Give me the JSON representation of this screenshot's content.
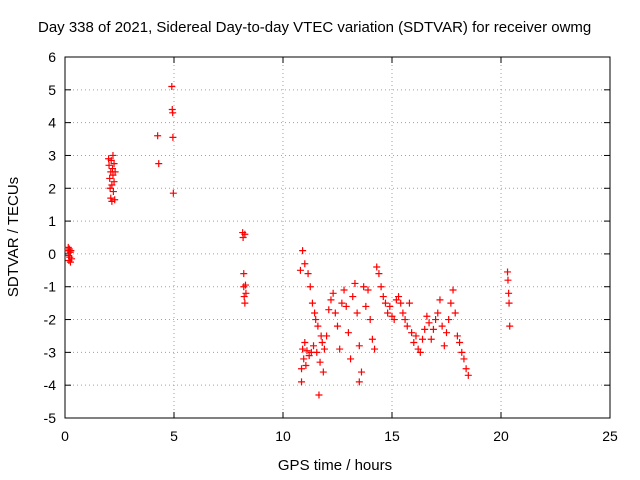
{
  "chart_data": {
    "type": "scatter",
    "title": "Day 338 of 2021, Sidereal Day-to-day VTEC variation (SDTVAR) for receiver owmg",
    "xlabel": "GPS time / hours",
    "ylabel": "SDTVAR / TECUs",
    "xlim": [
      0,
      25
    ],
    "ylim": [
      -5,
      6
    ],
    "xticks": [
      0,
      5,
      10,
      15,
      20,
      25
    ],
    "yticks": [
      -5,
      -4,
      -3,
      -2,
      -1,
      0,
      1,
      2,
      3,
      4,
      5,
      6
    ],
    "xtick_labels": [
      "0",
      "5",
      "10",
      "15",
      "20",
      "25"
    ],
    "ytick_labels": [
      "-5",
      "-4",
      "-3",
      "-2",
      "-1",
      "0",
      "1",
      "2",
      "3",
      "4",
      "5",
      "6"
    ],
    "grid": true,
    "marker": "+",
    "color": "#ff0000",
    "series": [
      {
        "name": "SDTVAR",
        "points": [
          [
            0.15,
            0.2
          ],
          [
            0.15,
            0.1
          ],
          [
            0.17,
            -0.05
          ],
          [
            0.18,
            -0.2
          ],
          [
            0.2,
            0.15
          ],
          [
            0.22,
            -0.1
          ],
          [
            0.24,
            0.05
          ],
          [
            0.25,
            -0.25
          ],
          [
            0.27,
            0.1
          ],
          [
            0.3,
            -0.15
          ],
          [
            2.0,
            2.9
          ],
          [
            2.02,
            2.7
          ],
          [
            2.05,
            2.3
          ],
          [
            2.07,
            2.0
          ],
          [
            2.1,
            1.7
          ],
          [
            2.1,
            2.5
          ],
          [
            2.12,
            2.85
          ],
          [
            2.15,
            2.1
          ],
          [
            2.15,
            1.6
          ],
          [
            2.18,
            2.6
          ],
          [
            2.2,
            3.0
          ],
          [
            2.2,
            2.4
          ],
          [
            2.22,
            1.9
          ],
          [
            2.25,
            2.75
          ],
          [
            2.25,
            2.2
          ],
          [
            2.28,
            1.65
          ],
          [
            2.3,
            2.5
          ],
          [
            4.25,
            3.6
          ],
          [
            4.3,
            2.75
          ],
          [
            4.9,
            5.1
          ],
          [
            4.92,
            4.4
          ],
          [
            4.94,
            4.3
          ],
          [
            4.95,
            3.55
          ],
          [
            4.97,
            1.85
          ],
          [
            8.15,
            0.65
          ],
          [
            8.17,
            0.5
          ],
          [
            8.2,
            -0.6
          ],
          [
            8.2,
            -1.0
          ],
          [
            8.22,
            -1.3
          ],
          [
            8.25,
            -1.5
          ],
          [
            8.25,
            0.6
          ],
          [
            8.28,
            -0.95
          ],
          [
            8.3,
            -1.2
          ],
          [
            10.8,
            -0.5
          ],
          [
            10.85,
            -3.5
          ],
          [
            10.85,
            -3.9
          ],
          [
            10.9,
            -2.9
          ],
          [
            10.9,
            0.1
          ],
          [
            10.95,
            -3.2
          ],
          [
            11.0,
            -2.7
          ],
          [
            11.0,
            -0.3
          ],
          [
            11.05,
            -3.4
          ],
          [
            11.1,
            -2.95
          ],
          [
            11.15,
            -0.6
          ],
          [
            11.2,
            -3.1
          ],
          [
            11.25,
            -1.0
          ],
          [
            11.3,
            -3.0
          ],
          [
            11.35,
            -1.5
          ],
          [
            11.4,
            -2.8
          ],
          [
            11.45,
            -1.8
          ],
          [
            11.5,
            -2.0
          ],
          [
            11.55,
            -3.0
          ],
          [
            11.6,
            -2.2
          ],
          [
            11.65,
            -4.3
          ],
          [
            11.7,
            -3.3
          ],
          [
            11.75,
            -2.5
          ],
          [
            11.8,
            -2.7
          ],
          [
            11.85,
            -3.6
          ],
          [
            11.9,
            -2.9
          ],
          [
            12.0,
            -2.5
          ],
          [
            12.1,
            -1.7
          ],
          [
            12.2,
            -1.4
          ],
          [
            12.3,
            -1.2
          ],
          [
            12.4,
            -1.8
          ],
          [
            12.5,
            -2.2
          ],
          [
            12.6,
            -2.9
          ],
          [
            12.7,
            -1.5
          ],
          [
            12.8,
            -1.1
          ],
          [
            12.9,
            -1.6
          ],
          [
            13.0,
            -2.4
          ],
          [
            13.1,
            -3.2
          ],
          [
            13.2,
            -1.3
          ],
          [
            13.3,
            -0.9
          ],
          [
            13.4,
            -1.8
          ],
          [
            13.5,
            -2.8
          ],
          [
            13.5,
            -3.9
          ],
          [
            13.6,
            -3.6
          ],
          [
            13.7,
            -1.0
          ],
          [
            13.8,
            -1.6
          ],
          [
            13.9,
            -1.1
          ],
          [
            14.0,
            -2.0
          ],
          [
            14.1,
            -2.6
          ],
          [
            14.2,
            -2.9
          ],
          [
            14.3,
            -0.4
          ],
          [
            14.4,
            -0.6
          ],
          [
            14.5,
            -1.0
          ],
          [
            14.6,
            -1.3
          ],
          [
            14.7,
            -1.5
          ],
          [
            14.8,
            -1.8
          ],
          [
            14.9,
            -1.6
          ],
          [
            15.0,
            -1.9
          ],
          [
            15.1,
            -2.0
          ],
          [
            15.2,
            -1.4
          ],
          [
            15.3,
            -1.3
          ],
          [
            15.4,
            -1.5
          ],
          [
            15.5,
            -1.8
          ],
          [
            15.6,
            -2.0
          ],
          [
            15.7,
            -2.2
          ],
          [
            15.8,
            -1.5
          ],
          [
            15.9,
            -2.4
          ],
          [
            16.0,
            -2.7
          ],
          [
            16.1,
            -2.5
          ],
          [
            16.2,
            -2.9
          ],
          [
            16.3,
            -3.0
          ],
          [
            16.4,
            -2.6
          ],
          [
            16.5,
            -2.3
          ],
          [
            16.6,
            -1.9
          ],
          [
            16.7,
            -2.1
          ],
          [
            16.8,
            -2.6
          ],
          [
            16.9,
            -2.3
          ],
          [
            17.0,
            -2.0
          ],
          [
            17.1,
            -1.8
          ],
          [
            17.2,
            -1.4
          ],
          [
            17.3,
            -2.2
          ],
          [
            17.4,
            -2.8
          ],
          [
            17.5,
            -2.4
          ],
          [
            17.6,
            -2.0
          ],
          [
            17.7,
            -1.5
          ],
          [
            17.8,
            -1.1
          ],
          [
            17.9,
            -1.8
          ],
          [
            18.0,
            -2.5
          ],
          [
            18.1,
            -2.7
          ],
          [
            18.2,
            -3.0
          ],
          [
            18.3,
            -3.2
          ],
          [
            18.4,
            -3.5
          ],
          [
            18.5,
            -3.7
          ],
          [
            20.3,
            -0.55
          ],
          [
            20.32,
            -0.8
          ],
          [
            20.35,
            -1.2
          ],
          [
            20.37,
            -1.5
          ],
          [
            20.4,
            -2.2
          ]
        ]
      }
    ]
  }
}
